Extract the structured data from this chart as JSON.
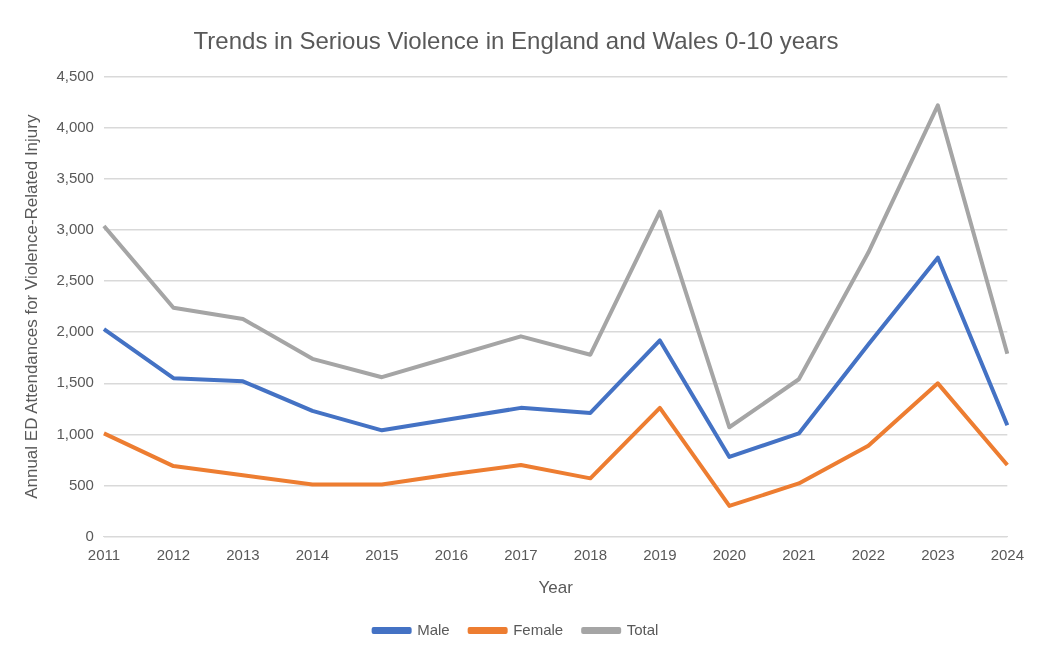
{
  "chart_data": {
    "type": "line",
    "title": "Trends in Serious Violence in England and Wales 0-10 years",
    "xlabel": "Year",
    "ylabel": "Annual ED Attendances for Violence-Related Injury",
    "categories": [
      "2011",
      "2012",
      "2013",
      "2014",
      "2015",
      "2016",
      "2017",
      "2018",
      "2019",
      "2020",
      "2021",
      "2022",
      "2023",
      "2024"
    ],
    "series": [
      {
        "name": "Male",
        "color": "#4472c4",
        "values": [
          2030,
          1550,
          1520,
          1230,
          1040,
          1150,
          1260,
          1210,
          1920,
          780,
          1010,
          1880,
          2730,
          1090
        ]
      },
      {
        "name": "Female",
        "color": "#ed7d31",
        "values": [
          1010,
          690,
          600,
          510,
          510,
          610,
          700,
          570,
          1260,
          300,
          520,
          890,
          1500,
          700
        ]
      },
      {
        "name": "Total",
        "color": "#a5a5a5",
        "values": [
          3040,
          2240,
          2130,
          1740,
          1560,
          1760,
          1960,
          1780,
          3180,
          1070,
          1540,
          2780,
          4220,
          1790
        ]
      }
    ],
    "ylim": [
      0,
      4500
    ],
    "yticks": [
      {
        "value": 0,
        "label": "0"
      },
      {
        "value": 500,
        "label": "500"
      },
      {
        "value": 1000,
        "label": "1,000"
      },
      {
        "value": 1500,
        "label": "1,500"
      },
      {
        "value": 2000,
        "label": "2,000"
      },
      {
        "value": 2500,
        "label": "2,500"
      },
      {
        "value": 3000,
        "label": "3,000"
      },
      {
        "value": 3500,
        "label": "3,500"
      },
      {
        "value": 4000,
        "label": "4,000"
      },
      {
        "value": 4500,
        "label": "4,500"
      }
    ],
    "grid": "y",
    "legend": "bottom",
    "marker": "none",
    "line_style": "solid"
  }
}
